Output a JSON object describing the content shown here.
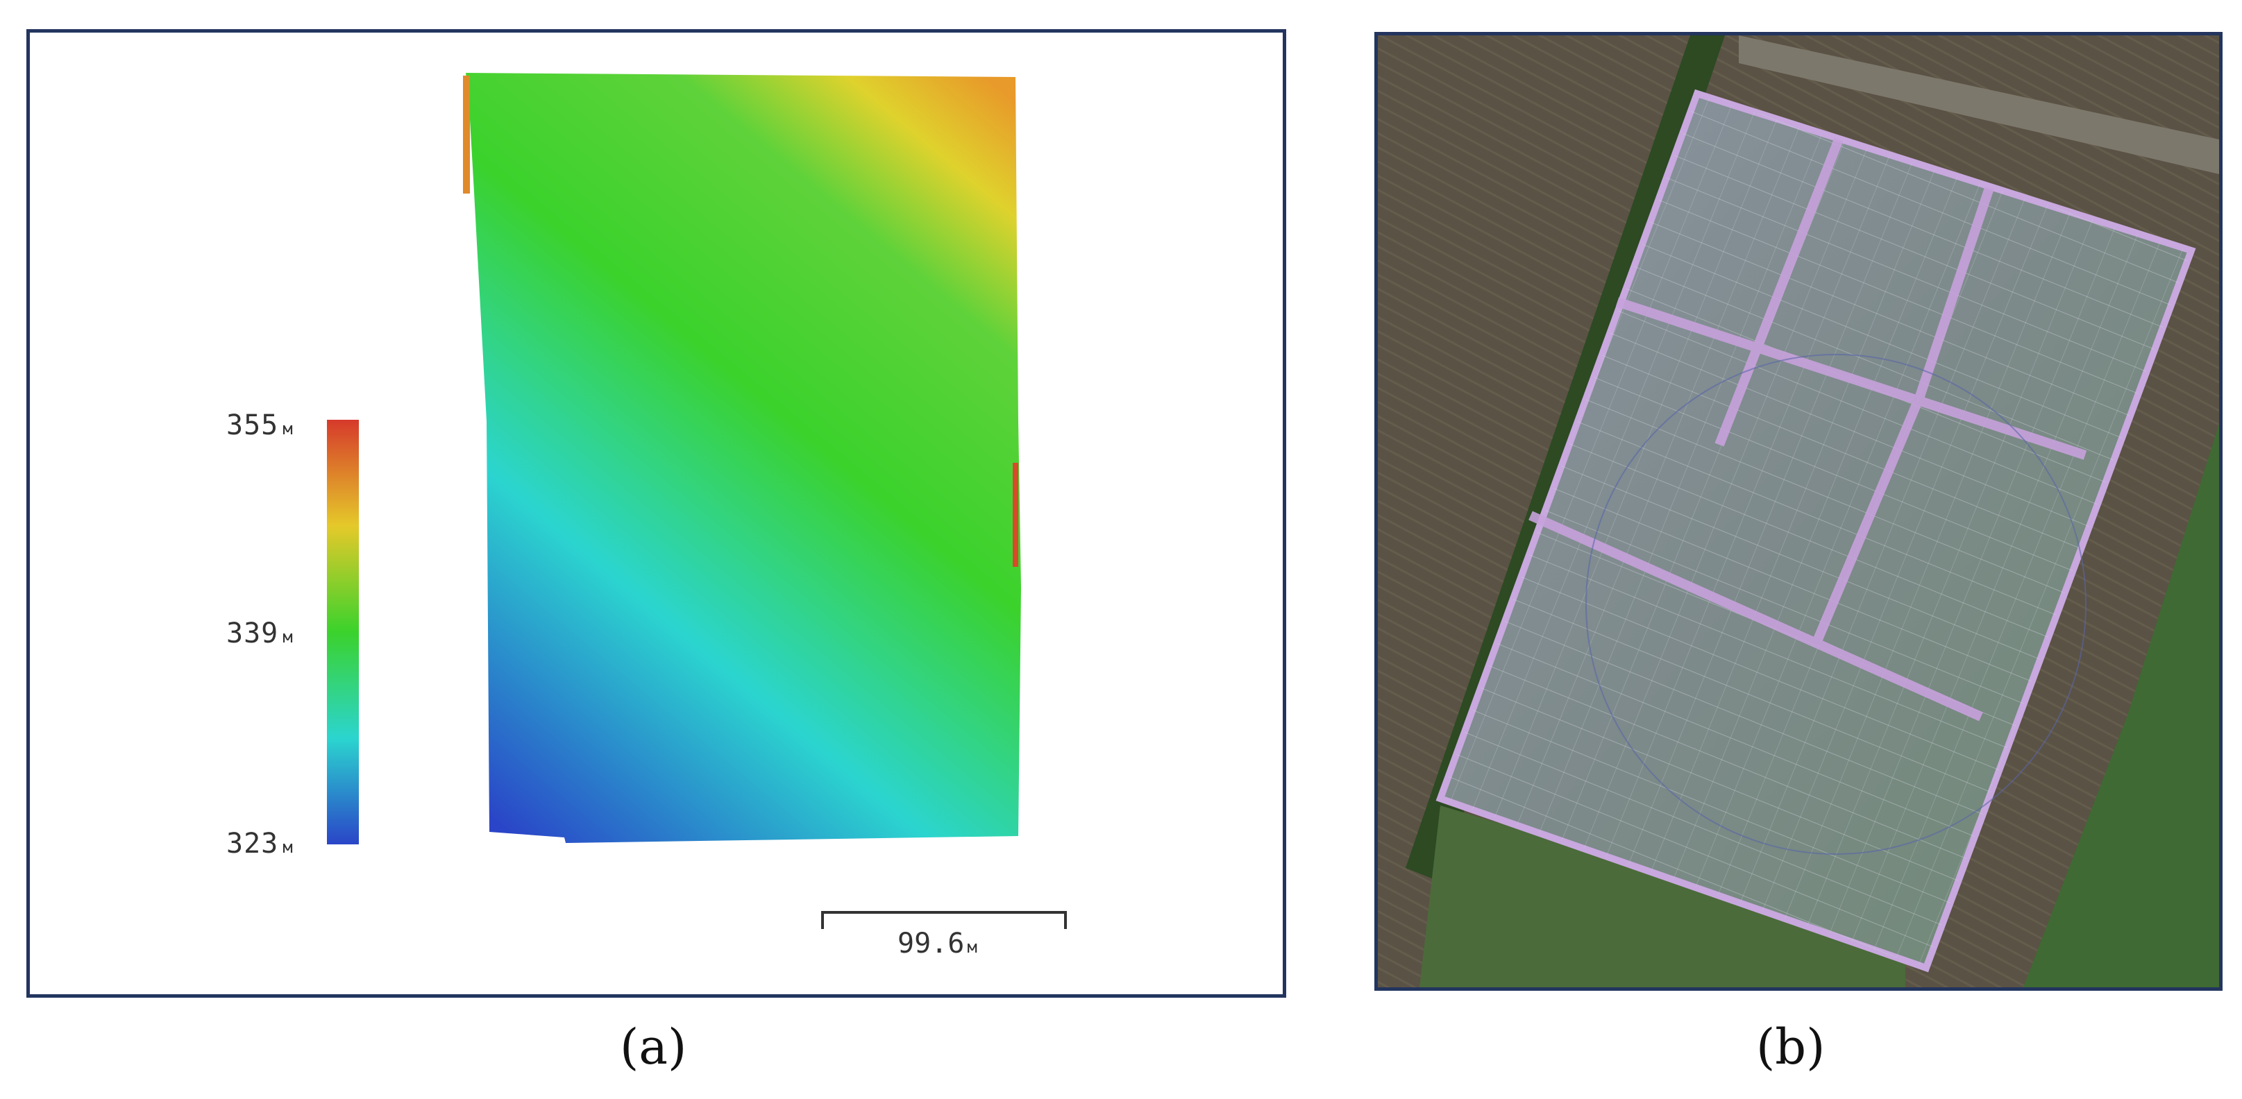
{
  "figure": {
    "panel_a": {
      "caption": "(a)",
      "colorbar": {
        "max_value": "355",
        "mid_value": "339",
        "min_value": "323",
        "unit": "м",
        "colors": [
          "#d63a2b",
          "#e5c92a",
          "#3bd22c",
          "#2bd5cf",
          "#2a45c8"
        ]
      },
      "scale_bar": {
        "value": "99.6",
        "unit": "м"
      }
    },
    "panel_b": {
      "caption": "(b)"
    }
  }
}
